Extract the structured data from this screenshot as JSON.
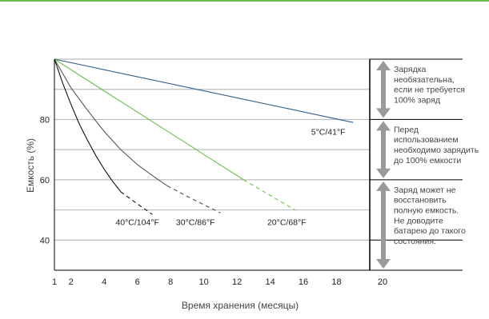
{
  "colors": {
    "top_rule": "#6cbf4b",
    "gridline": "#bdbdbd",
    "axis": "#000000",
    "arrow": "#9a9a9a",
    "series_5c": "#2e5f8a",
    "series_20c": "#6cbf4b",
    "series_30c": "#555555",
    "series_40c": "#111111"
  },
  "chart_data": {
    "type": "line",
    "title": "",
    "xlabel": "Время хранения (месяцы)",
    "ylabel": "Емкость (%)",
    "xlim": [
      1,
      20
    ],
    "ylim": [
      30,
      100
    ],
    "x_ticks": [
      "1",
      "2",
      "4",
      "6",
      "8",
      "10",
      "12",
      "14",
      "16",
      "18",
      "20"
    ],
    "y_ticks": [
      "40",
      "60",
      "80"
    ],
    "gridlines_y": [
      40,
      50,
      60,
      70,
      80,
      90,
      100
    ],
    "series": [
      {
        "name": "5°C/41°F",
        "color_key": "series_5c",
        "solid": [
          [
            1,
            100
          ],
          [
            19,
            79
          ]
        ],
        "dashed": []
      },
      {
        "name": "20°C/68°F",
        "color_key": "series_20c",
        "solid": [
          [
            1,
            100
          ],
          [
            12.4,
            60
          ]
        ],
        "dashed": [
          [
            12.4,
            60
          ],
          [
            15.5,
            50
          ]
        ]
      },
      {
        "name": "30°C/86°F",
        "color_key": "series_30c",
        "solid": [
          [
            1,
            100
          ],
          [
            2,
            90.5
          ],
          [
            3,
            83
          ],
          [
            4,
            76
          ],
          [
            5,
            70
          ],
          [
            6,
            65
          ],
          [
            7,
            61
          ],
          [
            7.8,
            58
          ]
        ],
        "dashed": [
          [
            7.8,
            58
          ],
          [
            9,
            54.5
          ],
          [
            11,
            49
          ]
        ]
      },
      {
        "name": "40°C/104°F",
        "color_key": "series_40c",
        "solid": [
          [
            1,
            100
          ],
          [
            1.5,
            92
          ],
          [
            2,
            85
          ],
          [
            2.5,
            78.5
          ],
          [
            3,
            73
          ],
          [
            3.5,
            68
          ],
          [
            4,
            63.5
          ],
          [
            4.5,
            59.5
          ],
          [
            5,
            56
          ]
        ],
        "dashed": [
          [
            5,
            56
          ],
          [
            6,
            52
          ],
          [
            6.9,
            48.5
          ]
        ]
      }
    ],
    "annotations": [
      {
        "text": "5°C/41°F",
        "x": 17.5,
        "y": 76
      },
      {
        "text": "40°C/104°F",
        "x": 6.0,
        "y": 46
      },
      {
        "text": "30°C/86°F",
        "x": 9.5,
        "y": 46
      },
      {
        "text": "20°C/68°F",
        "x": 15.0,
        "y": 46
      }
    ],
    "zones": [
      {
        "y_top": 100,
        "y_bottom": 80,
        "lines": [
          "Зарядка",
          "необязательна,",
          "если не требуется",
          "100% заряд"
        ]
      },
      {
        "y_top": 80,
        "y_bottom": 60,
        "lines": [
          "Перед",
          "использованием",
          "необходимо зарядить",
          "до 100% емкости"
        ]
      },
      {
        "y_top": 60,
        "y_bottom": 30,
        "lines": [
          "Заряд может не",
          "восстановить",
          "полную емкость.",
          "Не доводите",
          "батарею до такого",
          "состояния."
        ]
      }
    ],
    "grid": true
  }
}
